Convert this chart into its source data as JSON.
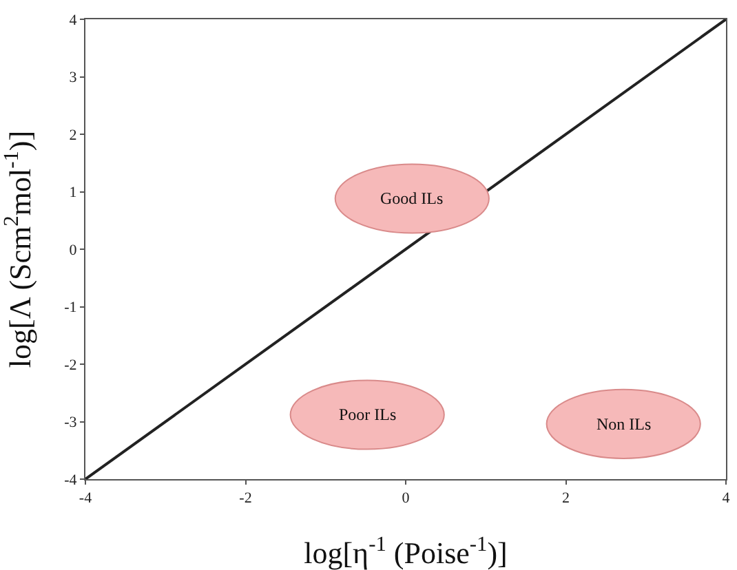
{
  "chart_data": {
    "type": "line",
    "xlabel": "log[η$^{-1}$ (Poise$^{-1}$)]",
    "ylabel": "log[Λ (Scm$^{2}$mol$^{-1}$)]",
    "x": [
      -4,
      4
    ],
    "series": [
      {
        "color": "#222222",
        "values": [
          -4,
          4
        ]
      }
    ],
    "xlim": [
      -4,
      4
    ],
    "xticks": [
      -4,
      -2,
      0,
      2,
      4
    ],
    "ylim": [
      -4,
      4
    ],
    "yticks": [
      -4,
      -3,
      -2,
      -1,
      0,
      1,
      2,
      3,
      4
    ],
    "grid": false,
    "marker": "none",
    "line_style": "solid",
    "annotations": [
      "Good ILs",
      "Poor ILs",
      "Non ILs"
    ]
  }
}
